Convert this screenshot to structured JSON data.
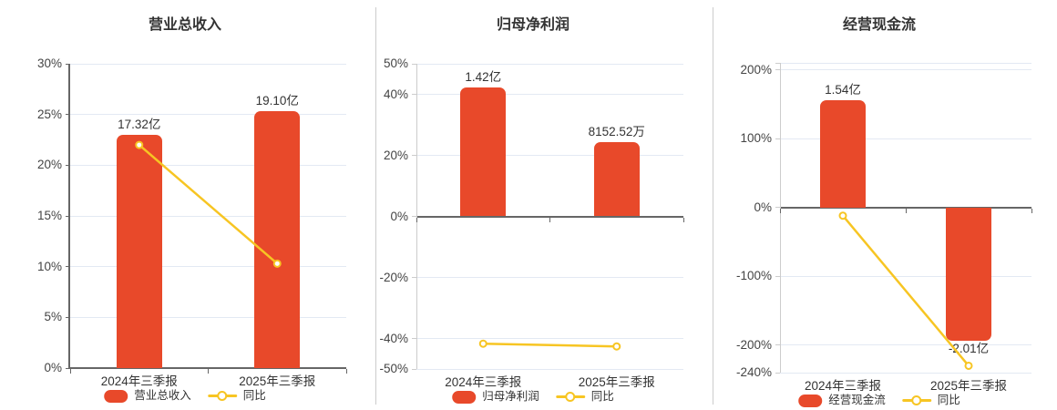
{
  "colors": {
    "background": "#ffffff",
    "bar": "#e8492a",
    "line": "#f7c523",
    "axis_dark": "#666666",
    "axis_light": "#cccccc",
    "grid": "#e3e9f3",
    "text": "#333333",
    "tick_text": "#444444",
    "divider": "#cccccc"
  },
  "chart_data": [
    {
      "type": "bar+line",
      "title": "营业总收入",
      "categories": [
        "2024年三季报",
        "2025年三季报"
      ],
      "bar_series_name": "营业总收入",
      "bar_value_labels": [
        "17.32亿",
        "19.10亿"
      ],
      "bar_display_pct": [
        23.0,
        25.3
      ],
      "line_series_name": "同比",
      "line_values_pct": [
        22.0,
        10.3
      ],
      "ylim": [
        0,
        30
      ],
      "yticks": [
        {
          "v": 0,
          "label": "0%"
        },
        {
          "v": 5,
          "label": "5%"
        },
        {
          "v": 10,
          "label": "10%"
        },
        {
          "v": 15,
          "label": "15%"
        },
        {
          "v": 20,
          "label": "20%"
        },
        {
          "v": 25,
          "label": "25%"
        },
        {
          "v": 30,
          "label": "30%"
        }
      ],
      "legend": [
        "营业总收入",
        "同比"
      ],
      "legend_position": "bottom",
      "grid_on": true
    },
    {
      "type": "bar+line",
      "title": "归母净利润",
      "categories": [
        "2024年三季报",
        "2025年三季报"
      ],
      "bar_series_name": "归母净利润",
      "bar_value_labels": [
        "1.42亿",
        "8152.52万"
      ],
      "bar_display_pct": [
        42.3,
        24.4
      ],
      "line_series_name": "同比",
      "line_values_pct": [
        -41.7,
        -42.6
      ],
      "ylim": [
        -50,
        50
      ],
      "yticks": [
        {
          "v": -50,
          "label": "-50%"
        },
        {
          "v": -40,
          "label": "-40%"
        },
        {
          "v": -20,
          "label": "-20%"
        },
        {
          "v": 0,
          "label": "0%"
        },
        {
          "v": 20,
          "label": "20%"
        },
        {
          "v": 40,
          "label": "40%"
        },
        {
          "v": 50,
          "label": "50%"
        }
      ],
      "legend": [
        "归母净利润",
        "同比"
      ],
      "legend_position": "bottom",
      "grid_on": true
    },
    {
      "type": "bar+line",
      "title": "经营现金流",
      "categories": [
        "2024年三季报",
        "2025年三季报"
      ],
      "bar_series_name": "经营现金流",
      "bar_value_labels": [
        "1.54亿",
        "-2.01亿"
      ],
      "bar_display_pct": [
        156,
        -194
      ],
      "line_series_name": "同比",
      "line_values_pct": [
        -12,
        -230
      ],
      "ylim": [
        -240,
        210
      ],
      "yticks": [
        {
          "v": -240,
          "label": "-240%"
        },
        {
          "v": -200,
          "label": "-200%"
        },
        {
          "v": -100,
          "label": "-100%"
        },
        {
          "v": 0,
          "label": "0%"
        },
        {
          "v": 100,
          "label": "100%"
        },
        {
          "v": 200,
          "label": "200%"
        },
        {
          "v": 210,
          "label": ""
        }
      ],
      "legend": [
        "经营现金流",
        "同比"
      ],
      "legend_position": "bottom",
      "grid_on": true
    }
  ]
}
